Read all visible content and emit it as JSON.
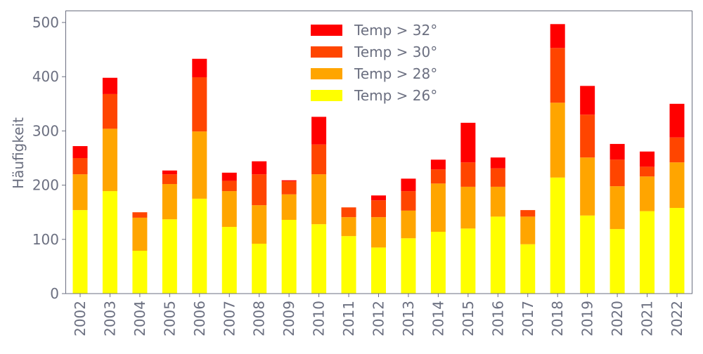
{
  "chart_data": {
    "type": "bar",
    "stacked": true,
    "title": "",
    "xlabel": "",
    "ylabel": "Häufigkeit",
    "ylim": [
      0,
      520
    ],
    "yticks": [
      0,
      100,
      200,
      300,
      400,
      500
    ],
    "grid": false,
    "legend_position": "top-center",
    "categories": [
      "2002",
      "2003",
      "2004",
      "2005",
      "2006",
      "2007",
      "2008",
      "2009",
      "2010",
      "2011",
      "2012",
      "2013",
      "2014",
      "2015",
      "2016",
      "2017",
      "2018",
      "2019",
      "2020",
      "2021",
      "2022"
    ],
    "series": [
      {
        "name": "Temp > 26°",
        "color": "#ffff00",
        "values": [
          154,
          189,
          79,
          137,
          175,
          123,
          92,
          136,
          128,
          106,
          85,
          102,
          114,
          120,
          142,
          91,
          214,
          144,
          119,
          152,
          158
        ]
      },
      {
        "name": "Temp > 28°",
        "color": "#ffa500",
        "values": [
          66,
          115,
          61,
          65,
          124,
          66,
          71,
          47,
          92,
          35,
          56,
          51,
          89,
          77,
          55,
          51,
          138,
          107,
          79,
          64,
          84
        ]
      },
      {
        "name": "Temp > 30°",
        "color": "#ff4500",
        "values": [
          30,
          64,
          10,
          18,
          100,
          19,
          57,
          24,
          55,
          18,
          31,
          36,
          26,
          45,
          34,
          12,
          101,
          79,
          49,
          18,
          46
        ]
      },
      {
        "name": "Temp > 32°",
        "color": "#ff0000",
        "values": [
          22,
          30,
          0,
          7,
          34,
          15,
          24,
          2,
          51,
          0,
          9,
          23,
          18,
          73,
          20,
          0,
          44,
          53,
          29,
          28,
          62
        ]
      }
    ]
  }
}
